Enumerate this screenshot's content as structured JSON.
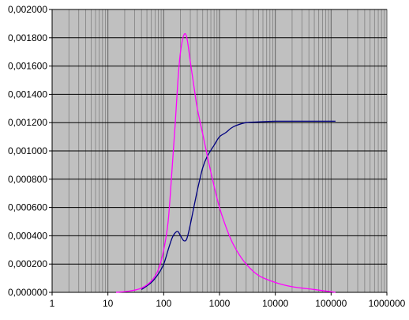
{
  "chart_data": {
    "type": "line",
    "title": "",
    "xlabel": "",
    "ylabel": "",
    "x_scale": "log",
    "xlim": [
      1,
      1000000
    ],
    "ylim": [
      0,
      0.002
    ],
    "grid": true,
    "legend": "none",
    "plot_background": "#c0c0c0",
    "x_tick_labels": [
      "1",
      "10",
      "100",
      "1000",
      "10000",
      "100000",
      "1000000"
    ],
    "y_tick_labels": [
      "0,000000",
      "0,000200",
      "0,000400",
      "0,000600",
      "0,000800",
      "0,001000",
      "0,001200",
      "0,001400",
      "0,001600",
      "0,001800",
      "0,002000"
    ],
    "series": [
      {
        "color": "#000080",
        "points": [
          [
            40,
            2e-05
          ],
          [
            60,
            7e-05
          ],
          [
            80,
            0.00013
          ],
          [
            100,
            0.0002
          ],
          [
            120,
            0.0003
          ],
          [
            140,
            0.00038
          ],
          [
            160,
            0.00042
          ],
          [
            180,
            0.00043
          ],
          [
            200,
            0.0004
          ],
          [
            230,
            0.000365
          ],
          [
            260,
            0.00038
          ],
          [
            300,
            0.00048
          ],
          [
            400,
            0.00072
          ],
          [
            500,
            0.00088
          ],
          [
            600,
            0.00096
          ],
          [
            800,
            0.00104
          ],
          [
            1000,
            0.0011
          ],
          [
            1300,
            0.00113
          ],
          [
            1600,
            0.00116
          ],
          [
            2000,
            0.00118
          ],
          [
            3000,
            0.0012
          ],
          [
            5000,
            0.001205
          ],
          [
            10000,
            0.00121
          ],
          [
            50000,
            0.00121
          ],
          [
            120000,
            0.00121
          ]
        ]
      },
      {
        "color": "#ff00ff",
        "points": [
          [
            14,
            0.0
          ],
          [
            25,
            1e-05
          ],
          [
            40,
            3e-05
          ],
          [
            60,
            8e-05
          ],
          [
            80,
            0.00016
          ],
          [
            100,
            0.0003
          ],
          [
            120,
            0.0005
          ],
          [
            140,
            0.00085
          ],
          [
            160,
            0.00118
          ],
          [
            180,
            0.0015
          ],
          [
            200,
            0.0017
          ],
          [
            230,
            0.00182
          ],
          [
            260,
            0.0018
          ],
          [
            300,
            0.00163
          ],
          [
            350,
            0.00145
          ],
          [
            400,
            0.0013
          ],
          [
            500,
            0.00112
          ],
          [
            700,
            0.00085
          ],
          [
            1000,
            0.0006
          ],
          [
            1500,
            0.0004
          ],
          [
            2000,
            0.0003
          ],
          [
            3000,
            0.0002
          ],
          [
            5000,
            0.00012
          ],
          [
            10000,
            7e-05
          ],
          [
            20000,
            4e-05
          ],
          [
            50000,
            2e-05
          ],
          [
            120000,
            0.0
          ]
        ]
      }
    ]
  }
}
